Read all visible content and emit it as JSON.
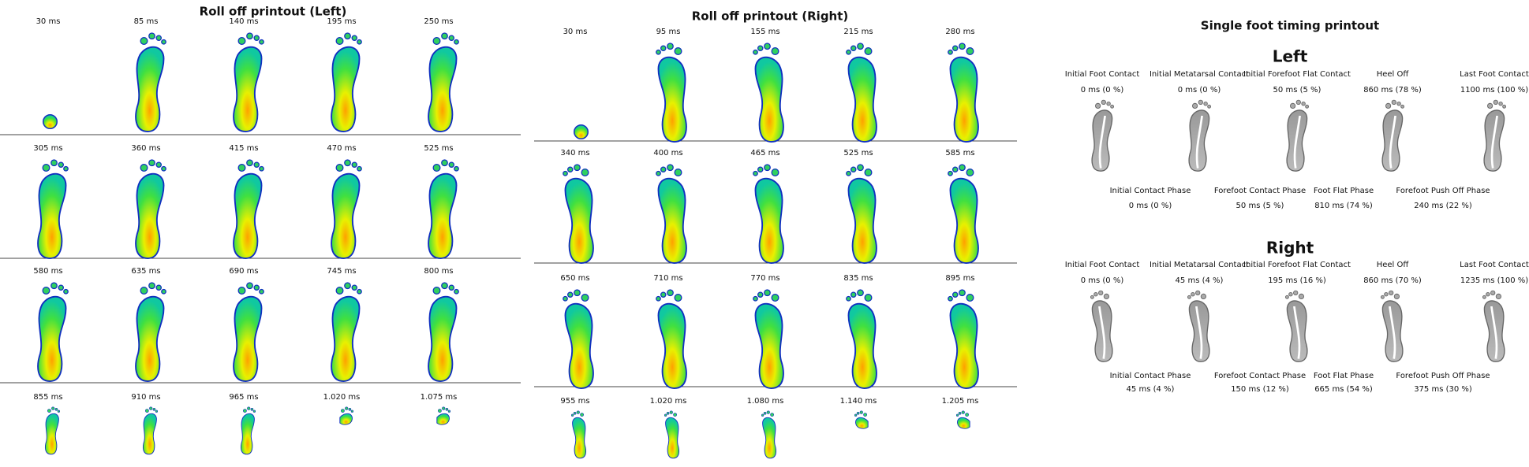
{
  "left_rolloff": {
    "title": "Roll off printout (Left)",
    "times": [
      "30 ms",
      "85 ms",
      "140 ms",
      "195 ms",
      "250 ms",
      "305 ms",
      "360 ms",
      "415 ms",
      "470 ms",
      "525 ms",
      "580 ms",
      "635 ms",
      "690 ms",
      "745 ms",
      "800 ms",
      "855 ms",
      "910 ms",
      "965 ms",
      "1.020 ms",
      "1.075 ms"
    ]
  },
  "right_rolloff": {
    "title": "Roll off printout (Right)",
    "times": [
      "30 ms",
      "95 ms",
      "155 ms",
      "215 ms",
      "280 ms",
      "340 ms",
      "400 ms",
      "465 ms",
      "525 ms",
      "585 ms",
      "650 ms",
      "710 ms",
      "770 ms",
      "835 ms",
      "895 ms",
      "955 ms",
      "1.020 ms",
      "1.080 ms",
      "1.140 ms",
      "1.205 ms"
    ]
  },
  "timing": {
    "title": "Single foot timing printout",
    "feet": [
      {
        "name": "Left",
        "events": [
          {
            "label": "Initial Foot Contact",
            "value": "0 ms (0 %)"
          },
          {
            "label": "Initial Metatarsal Contact",
            "value": "0 ms (0 %)"
          },
          {
            "label": "Initial Forefoot Flat Contact",
            "value": "50 ms (5 %)"
          },
          {
            "label": "Heel Off",
            "value": "860 ms (78 %)"
          },
          {
            "label": "Last Foot Contact",
            "value": "1100 ms (100 %)"
          }
        ],
        "phases": [
          {
            "label": "Initial Contact Phase",
            "value": "0 ms (0 %)"
          },
          {
            "label": "Forefoot Contact Phase",
            "value": "50 ms (5 %)"
          },
          {
            "label": "Foot Flat Phase",
            "value": "810 ms (74 %)"
          },
          {
            "label": "Forefoot Push Off Phase",
            "value": "240 ms (22 %)"
          }
        ]
      },
      {
        "name": "Right",
        "events": [
          {
            "label": "Initial Foot Contact",
            "value": "0 ms (0 %)"
          },
          {
            "label": "Initial Metatarsal Contact",
            "value": "45 ms (4 %)"
          },
          {
            "label": "Initial Forefoot Flat Contact",
            "value": "195 ms (16 %)"
          },
          {
            "label": "Heel Off",
            "value": "860 ms (70 %)"
          },
          {
            "label": "Last Foot Contact",
            "value": "1235 ms (100 %)"
          }
        ],
        "phases": [
          {
            "label": "Initial Contact Phase",
            "value": "45 ms (4 %)"
          },
          {
            "label": "Forefoot Contact Phase",
            "value": "150 ms (12 %)"
          },
          {
            "label": "Foot Flat Phase",
            "value": "665 ms (54 %)"
          },
          {
            "label": "Forefoot Push Off Phase",
            "value": "375 ms (30 %)"
          }
        ]
      }
    ]
  }
}
